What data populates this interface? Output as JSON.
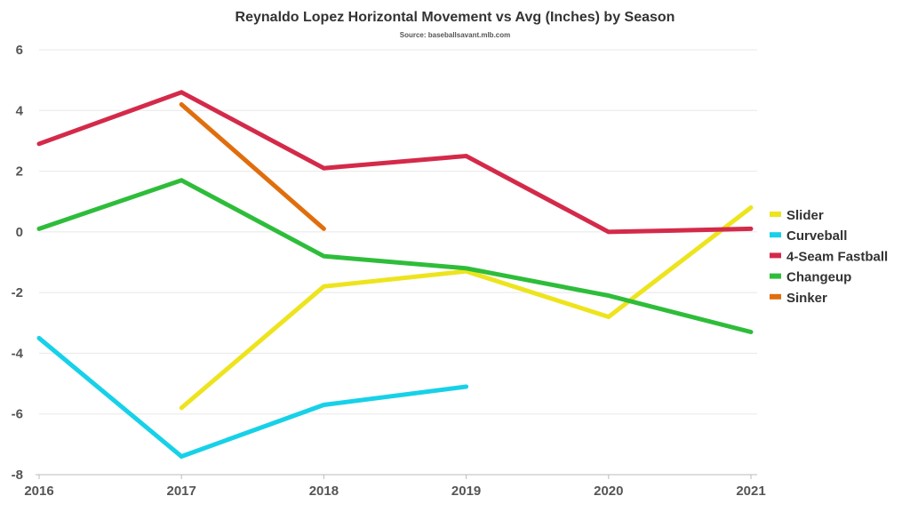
{
  "chart_data": {
    "type": "line",
    "title": "Reynaldo Lopez Horizontal Movement vs Avg (Inches) by Season",
    "subtitle": "Source: baseballsavant.mlb.com",
    "xlabel": "",
    "ylabel": "",
    "categories": [
      "2016",
      "2017",
      "2018",
      "2019",
      "2020",
      "2021"
    ],
    "ylim": [
      -8,
      6
    ],
    "yticks": [
      6,
      4,
      2,
      0,
      -2,
      -4,
      -6,
      -8
    ],
    "grid": true,
    "legend_position": "right",
    "series": [
      {
        "name": "Slider",
        "color": "#ede41e",
        "values": [
          null,
          -5.8,
          -1.8,
          -1.3,
          -2.8,
          0.8
        ]
      },
      {
        "name": "Curveball",
        "color": "#17d1e8",
        "values": [
          -3.5,
          -7.4,
          -5.7,
          -5.1,
          null,
          null
        ]
      },
      {
        "name": "4-Seam Fastball",
        "color": "#d42a4a",
        "values": [
          2.9,
          4.6,
          2.1,
          2.5,
          0.0,
          0.1
        ]
      },
      {
        "name": "Changeup",
        "color": "#2ebd3a",
        "values": [
          0.1,
          1.7,
          -0.8,
          -1.2,
          -2.1,
          -3.3
        ]
      },
      {
        "name": "Sinker",
        "color": "#e06e0e",
        "values": [
          null,
          4.2,
          0.1,
          null,
          null,
          null
        ]
      }
    ]
  }
}
